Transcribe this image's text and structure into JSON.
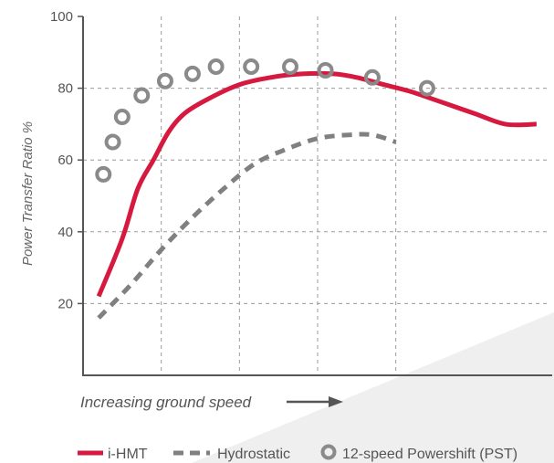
{
  "chart_data": {
    "type": "line",
    "title": "",
    "ylabel": "Power Transfer Ratio %",
    "xlabel": "Increasing ground speed",
    "ylim": [
      0,
      100
    ],
    "yticks": [
      20,
      40,
      60,
      80,
      100
    ],
    "grid": true,
    "legend_position": "bottom",
    "colors": {
      "i-HMT": "#d6193f",
      "Hydrostatic": "#808080",
      "12-speed Powershift (PST)": "#8a8a8a",
      "grid": "#9a9a9a",
      "axis": "#555555",
      "background_shade": "#efefef"
    },
    "series": [
      {
        "name": "i-HMT",
        "style": "solid",
        "x": [
          0.2,
          0.5,
          0.7,
          0.9,
          1.1,
          1.3,
          1.6,
          2.0,
          2.4,
          2.8,
          3.2,
          3.5,
          3.85,
          4.2,
          4.6,
          5.0,
          5.4,
          5.8
        ],
        "y": [
          22,
          38,
          52,
          60,
          68,
          73,
          77,
          81,
          83,
          84,
          84,
          83,
          81,
          79,
          76,
          73,
          70,
          70
        ]
      },
      {
        "name": "Hydrostatic",
        "style": "dashed",
        "x": [
          0.2,
          0.6,
          1.0,
          1.4,
          1.8,
          2.2,
          2.6,
          3.0,
          3.4,
          3.7,
          4.0
        ],
        "y": [
          16,
          25,
          35,
          44,
          52,
          59,
          63,
          66,
          67,
          67,
          65
        ]
      },
      {
        "name": "12-speed Powershift (PST)",
        "style": "circles",
        "x": [
          0.26,
          0.38,
          0.5,
          0.75,
          1.05,
          1.4,
          1.7,
          2.15,
          2.65,
          3.1,
          3.7,
          4.4
        ],
        "y": [
          56,
          65,
          72,
          78,
          82,
          84,
          86,
          86,
          86,
          85,
          83,
          80
        ]
      }
    ]
  }
}
